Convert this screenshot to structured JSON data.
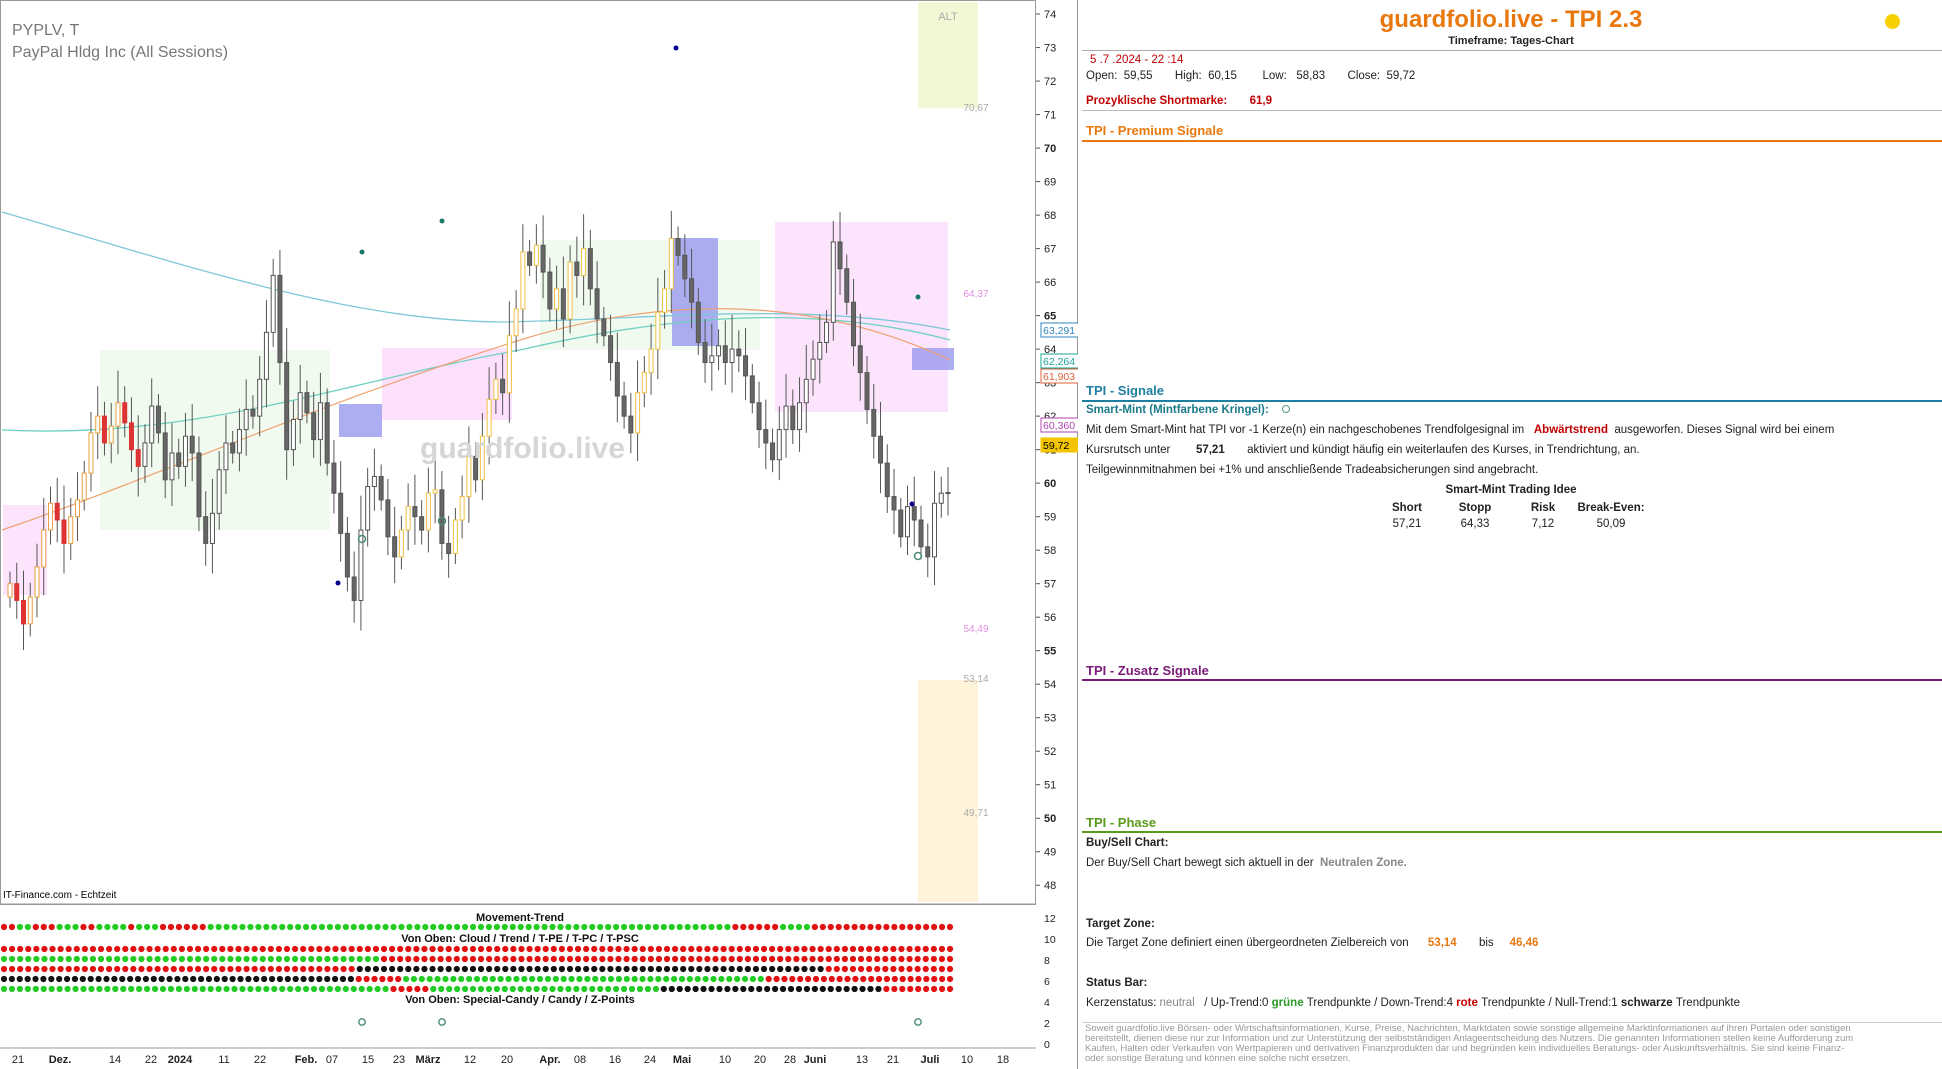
{
  "chart": {
    "symbol": "PYPLV, T",
    "company": "PayPal Hldg Inc (All Sessions)",
    "source": "IT-Finance.com - Echtzeit",
    "watermark": "guardfolio.live",
    "zone_label": "ALT"
  },
  "panel": {
    "title": "guardfolio.live - TPI 2.3",
    "timeframe": "Timeframe: Tages-Chart",
    "datetime": "5 .7 .2024  - 22 :14",
    "ohlc": {
      "open_label": "Open:",
      "open": "59,55",
      "high_label": "High:",
      "high": "60,15",
      "low_label": "Low:",
      "low": "58,83",
      "close_label": "Close:",
      "close": "59,72"
    },
    "shortmark_label": "Prozyklische Shortmarke:",
    "shortmark_value": "61,9",
    "sections": {
      "premium": "TPI - Premium Signale",
      "signale": "TPI - Signale",
      "zusatz": "TPI - Zusatz Signale",
      "phase": "TPI - Phase"
    },
    "signal": {
      "heading": "Smart-Mint (Mintfarbene Kringel):",
      "line1_a": "Mit dem Smart-Mint hat TPI vor -1  Kerze(n) ein nachgeschobenes Trendfolgesignal im",
      "line1_b": "Abwärtstrend",
      "line1_c": "ausgeworfen. Dieses Signal wird bei einem",
      "line2_a": "Kursrutsch unter",
      "line2_b": "57,21",
      "line2_c": "aktiviert und kündigt häufig ein weiterlaufen des Kurses, in Trendrichtung, an.",
      "line3": "Teilgewinnmitnahmen bei +1% und anschließende Tradeabsicherungen sind angebracht.",
      "idea_title": "Smart-Mint Trading Idee",
      "idea_headers": [
        "Short",
        "Stopp",
        "Risk",
        "Break-Even:"
      ],
      "idea_values": [
        "57,21",
        "64,33",
        "7,12",
        "50,09"
      ]
    },
    "phase": {
      "buysell_heading": "Buy/Sell Chart:",
      "buysell_a": "Der Buy/Sell Chart bewegt sich aktuell in der",
      "buysell_b": "Neutralen Zone.",
      "target_heading": "Target Zone:",
      "target_a": "Die Target Zone definiert einen übergeordneten Zielbereich von",
      "target_low": "53,14",
      "target_mid": "bis",
      "target_high": "46,46",
      "status_heading": "Status Bar:",
      "status_a": "Kerzenstatus:",
      "status_b": "neutral",
      "status_c": "/ Up-Trend:0",
      "status_d": "grüne",
      "status_e": "Trendpunkte  / Down-Trend:4",
      "status_f": "rote",
      "status_g": "Trendpunkte / Null-Trend:1",
      "status_h": "schwarze",
      "status_i": "Trendpunkte"
    },
    "disclaimer": "Soweit guardfolio.live Börsen- oder Wirtschaftsinformationen, Kurse, Preise, Nachrichten, Marktdaten sowie sonstige allgemeine Marktinformationen auf ihren Portalen oder sonstigen bereitstellt, dienen diese nur zur Information und zur Unterstützung der selbstständigen Anlageentscheidung des Nutzers. Die genannten Informationen stellen keine Aufforderung zum Kaufen, Halten oder Verkaufen von Wertpapieren und derivativen Finanzprodukten dar und begründen kein individuelles Beratungs- oder Auskunftsverhältnis. Sie sind keine Finanz- oder sonstige Beratung und können eine solche nicht ersetzen."
  },
  "chart_data": {
    "type": "candlestick",
    "ylim": [
      47.5,
      74.3
    ],
    "y_ticks": [
      48,
      49,
      50,
      51,
      52,
      53,
      54,
      55,
      56,
      57,
      58,
      59,
      60,
      61,
      62,
      63,
      64,
      65,
      66,
      67,
      68,
      69,
      70,
      71,
      72,
      73,
      74
    ],
    "y_ticks_bold": [
      50,
      55,
      60,
      65,
      70
    ],
    "x_tick_labels": [
      "21",
      "Dez.",
      "14",
      "22",
      "2024",
      "11",
      "22",
      "Feb.",
      "07",
      "15",
      "23",
      "März",
      "12",
      "20",
      "Apr.",
      "08",
      "16",
      "24",
      "Mai",
      "10",
      "20",
      "28",
      "Juni",
      "13",
      "21",
      "Juli",
      "10",
      "18"
    ],
    "x_tick_bold": [
      "Dez.",
      "2024",
      "Feb.",
      "März",
      "Apr.",
      "Mai",
      "Juni",
      "Juli"
    ],
    "price_tags": [
      {
        "value": "63,291",
        "color": "#2e86c1"
      },
      {
        "value": "62,264",
        "color": "#1aa59a"
      },
      {
        "value": "61,903",
        "color": "#e0603a"
      },
      {
        "value": "60,360",
        "color": "#b044b0"
      },
      {
        "value": "59,72",
        "color": "#f2c500"
      }
    ],
    "level_labels": [
      "70,67",
      "64,37",
      "54,49",
      "53,14",
      "49,71"
    ],
    "closes": [
      57.0,
      56.5,
      55.8,
      56.6,
      57.5,
      58.6,
      59.4,
      58.9,
      58.2,
      59.0,
      59.5,
      60.3,
      61.5,
      62.0,
      61.2,
      61.7,
      62.4,
      61.8,
      61.0,
      60.5,
      61.2,
      62.3,
      61.5,
      60.1,
      60.9,
      60.5,
      61.4,
      60.9,
      59.0,
      58.2,
      59.1,
      60.4,
      61.2,
      60.9,
      61.6,
      62.2,
      62.0,
      63.1,
      64.5,
      66.2,
      63.6,
      61.0,
      61.9,
      62.7,
      62.1,
      61.3,
      62.4,
      60.6,
      59.7,
      58.5,
      57.2,
      56.5,
      58.6,
      59.9,
      60.2,
      59.5,
      58.4,
      57.8,
      58.6,
      59.3,
      59.0,
      58.6,
      59.7,
      59.8,
      58.2,
      57.9,
      58.9,
      59.6,
      60.8,
      60.1,
      61.4,
      62.5,
      63.1,
      62.7,
      64.4,
      65.2,
      66.9,
      66.5,
      67.1,
      66.3,
      65.2,
      65.8,
      64.9,
      66.6,
      66.2,
      67.0,
      65.8,
      64.9,
      64.4,
      63.6,
      62.6,
      62.0,
      61.5,
      62.7,
      63.3,
      64.0,
      65.1,
      65.8,
      67.3,
      66.8,
      66.1,
      65.4,
      64.2,
      63.6,
      63.8,
      64.1,
      63.6,
      64.0,
      63.8,
      63.2,
      62.4,
      61.6,
      61.2,
      60.7,
      61.6,
      62.3,
      61.6,
      62.4,
      63.1,
      63.7,
      64.2,
      64.8,
      67.2,
      66.4,
      65.4,
      64.1,
      63.3,
      62.2,
      61.4,
      60.6,
      59.6,
      59.2,
      58.4,
      59.3,
      58.9,
      58.1,
      57.8,
      59.4,
      59.7,
      59.72
    ],
    "series_status": [
      {
        "name": "Movement-Trend"
      },
      {
        "name": "Von Oben: Cloud / Trend / T-PE / T-PC / T-PSC"
      },
      {
        "name": "Von Oben: Special-Candy / Candy / Z-Points"
      }
    ],
    "indicator_ticks": [
      0,
      2,
      4,
      6,
      8,
      10,
      12
    ]
  }
}
